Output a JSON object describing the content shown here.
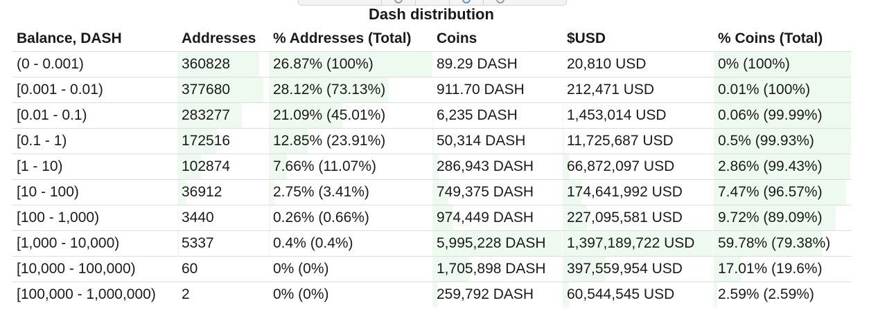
{
  "title": "Dash distribution",
  "columns": [
    "Balance, DASH",
    "Addresses",
    "% Addresses (Total)",
    "Coins",
    "$USD",
    "% Coins (Total)"
  ],
  "colors": {
    "bar_fill": "#eef9ef",
    "row_border": "#dcdcdc",
    "text": "#1a1a1a"
  },
  "rows": [
    {
      "balance": "(0 - 0.001)",
      "addresses": "360828",
      "pct_addresses": "26.87% (100%)",
      "coins": "89.29 DASH",
      "usd": "20,810 USD",
      "pct_coins": "0% (100%)",
      "pct_addr_value": 26.87,
      "pct_addr_total": 100,
      "pct_coins_value": 0,
      "pct_coins_total": 100
    },
    {
      "balance": "[0.001 - 0.01)",
      "addresses": "377680",
      "pct_addresses": "28.12% (73.13%)",
      "coins": "911.70 DASH",
      "usd": "212,471 USD",
      "pct_coins": "0.01% (100%)",
      "pct_addr_value": 28.12,
      "pct_addr_total": 73.13,
      "pct_coins_value": 0.01,
      "pct_coins_total": 100
    },
    {
      "balance": "[0.01 - 0.1)",
      "addresses": "283277",
      "pct_addresses": "21.09% (45.01%)",
      "coins": "6,235 DASH",
      "usd": "1,453,014 USD",
      "pct_coins": "0.06% (99.99%)",
      "pct_addr_value": 21.09,
      "pct_addr_total": 45.01,
      "pct_coins_value": 0.06,
      "pct_coins_total": 99.99
    },
    {
      "balance": "[0.1 - 1)",
      "addresses": "172516",
      "pct_addresses": "12.85% (23.91%)",
      "coins": "50,314 DASH",
      "usd": "11,725,687 USD",
      "pct_coins": "0.5% (99.93%)",
      "pct_addr_value": 12.85,
      "pct_addr_total": 23.91,
      "pct_coins_value": 0.5,
      "pct_coins_total": 99.93
    },
    {
      "balance": "[1 - 10)",
      "addresses": "102874",
      "pct_addresses": "7.66% (11.07%)",
      "coins": "286,943 DASH",
      "usd": "66,872,097 USD",
      "pct_coins": "2.86% (99.43%)",
      "pct_addr_value": 7.66,
      "pct_addr_total": 11.07,
      "pct_coins_value": 2.86,
      "pct_coins_total": 99.43
    },
    {
      "balance": "[10 - 100)",
      "addresses": "36912",
      "pct_addresses": "2.75% (3.41%)",
      "coins": "749,375 DASH",
      "usd": "174,641,992 USD",
      "pct_coins": "7.47% (96.57%)",
      "pct_addr_value": 2.75,
      "pct_addr_total": 3.41,
      "pct_coins_value": 7.47,
      "pct_coins_total": 96.57
    },
    {
      "balance": "[100 - 1,000)",
      "addresses": "3440",
      "pct_addresses": "0.26% (0.66%)",
      "coins": "974,449 DASH",
      "usd": "227,095,581 USD",
      "pct_coins": "9.72% (89.09%)",
      "pct_addr_value": 0.26,
      "pct_addr_total": 0.66,
      "pct_coins_value": 9.72,
      "pct_coins_total": 89.09
    },
    {
      "balance": "[1,000 - 10,000)",
      "addresses": "5337",
      "pct_addresses": "0.4% (0.4%)",
      "coins": "5,995,228 DASH",
      "usd": "1,397,189,722 USD",
      "pct_coins": "59.78% (79.38%)",
      "pct_addr_value": 0.4,
      "pct_addr_total": 0.4,
      "pct_coins_value": 59.78,
      "pct_coins_total": 79.38
    },
    {
      "balance": "[10,000 - 100,000)",
      "addresses": "60",
      "pct_addresses": "0% (0%)",
      "coins": "1,705,898 DASH",
      "usd": "397,559,954 USD",
      "pct_coins": "17.01% (19.6%)",
      "pct_addr_value": 0,
      "pct_addr_total": 0,
      "pct_coins_value": 17.01,
      "pct_coins_total": 19.6
    },
    {
      "balance": "[100,000 - 1,000,000)",
      "addresses": "2",
      "pct_addresses": "0% (0%)",
      "coins": "259,792 DASH",
      "usd": "60,544,545 USD",
      "pct_coins": "2.59% (2.59%)",
      "pct_addr_value": 0,
      "pct_addr_total": 0,
      "pct_coins_value": 2.59,
      "pct_coins_total": 2.59
    }
  ]
}
